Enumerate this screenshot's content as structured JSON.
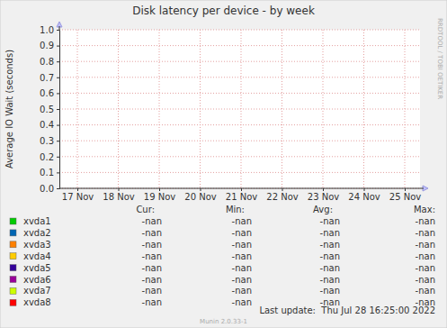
{
  "chart_data": {
    "type": "line",
    "title": "Disk latency per device - by week",
    "y_label": "Average IO Wait (seconds)",
    "categories": [
      "17 Nov",
      "18 Nov",
      "19 Nov",
      "20 Nov",
      "21 Nov",
      "22 Nov",
      "23 Nov",
      "24 Nov",
      "25 Nov"
    ],
    "ylim": [
      0,
      1
    ],
    "yticks": [
      {
        "value": 0,
        "label": "0.0"
      },
      0.1,
      0.2,
      0.3,
      0.4,
      0.5,
      0.6,
      0.7,
      0.8,
      0.9,
      {
        "value": 1,
        "label": "1.0"
      }
    ],
    "grid": true,
    "stat_headers": [
      "Cur:",
      "Min:",
      "Avg:",
      "Max:"
    ],
    "series": [
      {
        "name": "xvda1",
        "color": "#00cc00",
        "values": [
          null,
          null,
          null,
          null,
          null,
          null,
          null,
          null,
          null
        ],
        "stats": [
          "-nan",
          "-nan",
          "-nan",
          "-nan"
        ]
      },
      {
        "name": "xvda2",
        "color": "#0066b3",
        "values": [
          null,
          null,
          null,
          null,
          null,
          null,
          null,
          null,
          null
        ],
        "stats": [
          "-nan",
          "-nan",
          "-nan",
          "-nan"
        ]
      },
      {
        "name": "xvda3",
        "color": "#ff8000",
        "values": [
          null,
          null,
          null,
          null,
          null,
          null,
          null,
          null,
          null
        ],
        "stats": [
          "-nan",
          "-nan",
          "-nan",
          "-nan"
        ]
      },
      {
        "name": "xvda4",
        "color": "#ffcc00",
        "values": [
          null,
          null,
          null,
          null,
          null,
          null,
          null,
          null,
          null
        ],
        "stats": [
          "-nan",
          "-nan",
          "-nan",
          "-nan"
        ]
      },
      {
        "name": "xvda5",
        "color": "#330099",
        "values": [
          null,
          null,
          null,
          null,
          null,
          null,
          null,
          null,
          null
        ],
        "stats": [
          "-nan",
          "-nan",
          "-nan",
          "-nan"
        ]
      },
      {
        "name": "xvda6",
        "color": "#990099",
        "values": [
          null,
          null,
          null,
          null,
          null,
          null,
          null,
          null,
          null
        ],
        "stats": [
          "-nan",
          "-nan",
          "-nan",
          "-nan"
        ]
      },
      {
        "name": "xvda7",
        "color": "#ccff00",
        "values": [
          null,
          null,
          null,
          null,
          null,
          null,
          null,
          null,
          null
        ],
        "stats": [
          "-nan",
          "-nan",
          "-nan",
          "-nan"
        ]
      },
      {
        "name": "xvda8",
        "color": "#ff0000",
        "values": [
          null,
          null,
          null,
          null,
          null,
          null,
          null,
          null,
          null
        ],
        "stats": [
          "-nan",
          "-nan",
          "-nan",
          "-nan"
        ]
      }
    ],
    "footer": "Last update:  Thu Jul 28 16:25:00 2022",
    "credit": "Munin 2.0.33-1",
    "watermark": "RRDTOOL / TOBI OETIKER"
  }
}
